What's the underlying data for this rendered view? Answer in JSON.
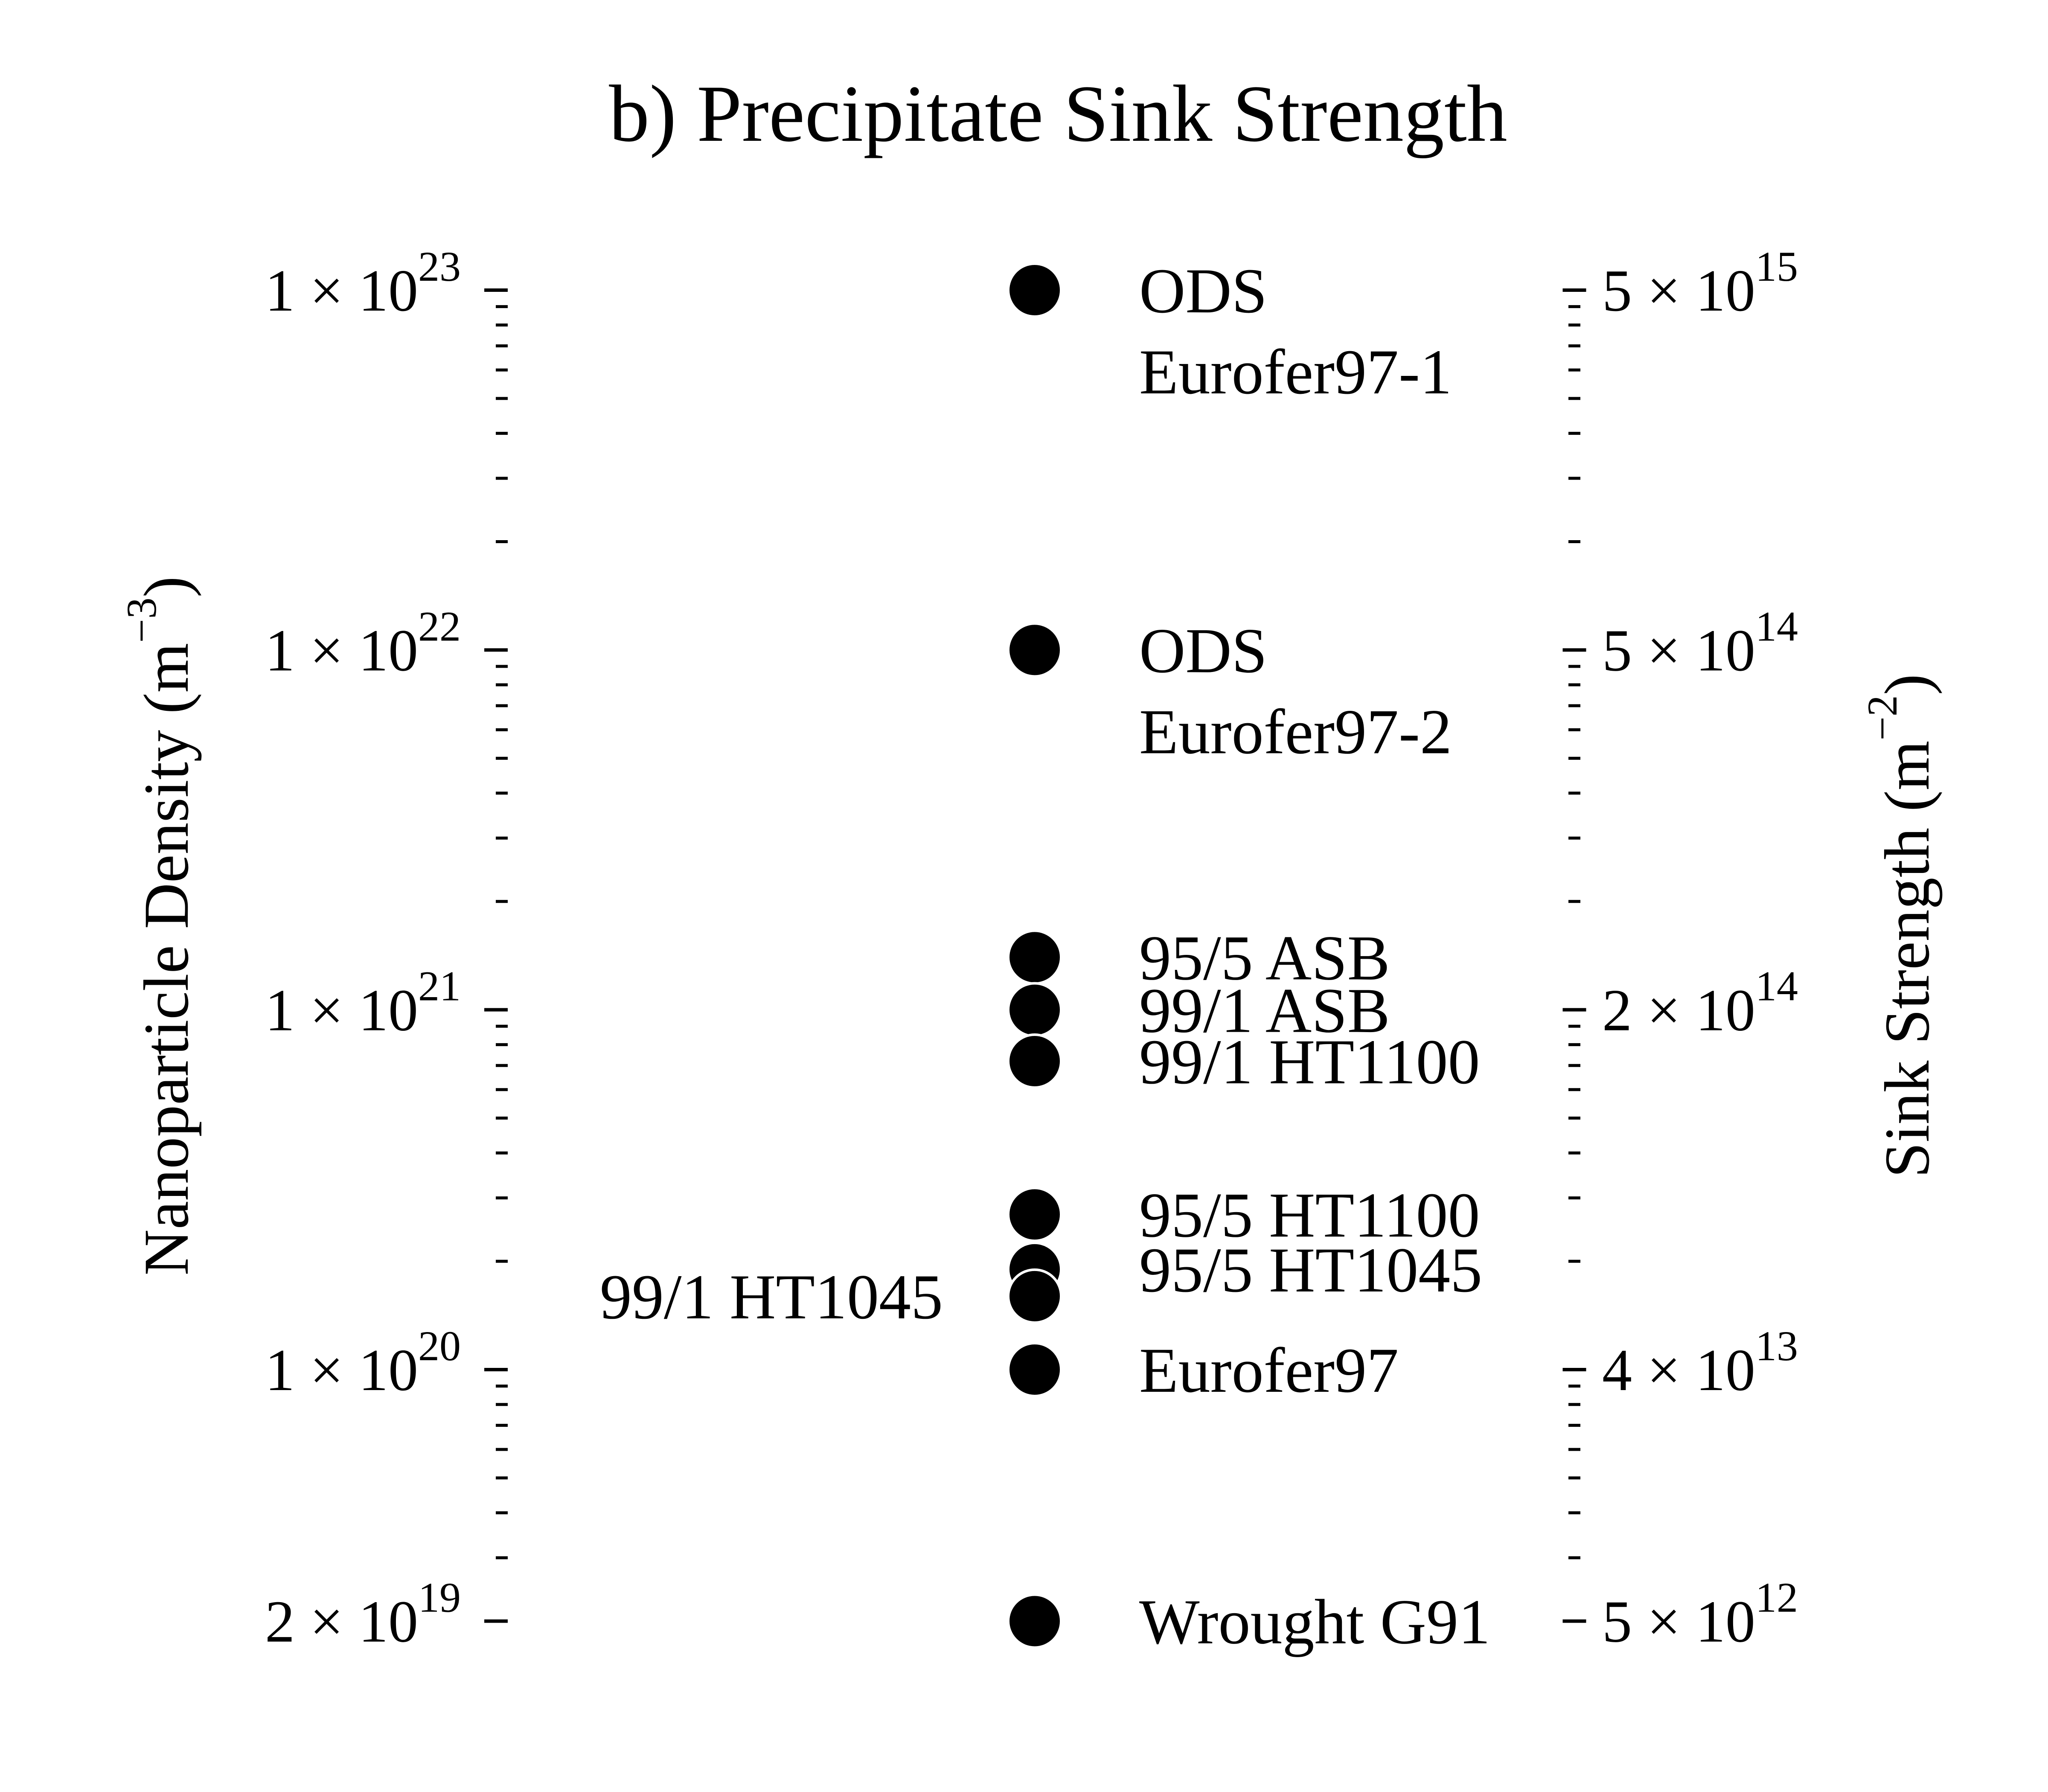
{
  "chart_data": {
    "type": "scatter",
    "title": "b) Precipitate Sink Strength",
    "left_axis": {
      "label_main": "Nanoparticle Density (m",
      "label_exp": "−3",
      "label_close": ")",
      "scale": "log",
      "range": [
        1.3e+19,
        2e+23
      ],
      "ticks": [
        {
          "value": 1e+23,
          "mantissa": "1",
          "exp": "23"
        },
        {
          "value": 1e+22,
          "mantissa": "1",
          "exp": "22"
        },
        {
          "value": 1e+21,
          "mantissa": "1",
          "exp": "21"
        },
        {
          "value": 1e+20,
          "mantissa": "1",
          "exp": "20"
        },
        {
          "value": 2e+19,
          "mantissa": "2",
          "exp": "19"
        }
      ]
    },
    "right_axis": {
      "label_main": "Sink Strength (m",
      "label_exp": "−2",
      "label_close": ")",
      "ticks": [
        {
          "mantissa": "5",
          "exp": "15",
          "at_left_value": 1e+23
        },
        {
          "mantissa": "5",
          "exp": "14",
          "at_left_value": 1e+22
        },
        {
          "mantissa": "2",
          "exp": "14",
          "at_left_value": 1e+21
        },
        {
          "mantissa": "4",
          "exp": "13",
          "at_left_value": 1e+20
        },
        {
          "mantissa": "5",
          "exp": "12",
          "at_left_value": 2e+19
        }
      ]
    },
    "times_symbol": "×",
    "base": "10",
    "points": [
      {
        "label_lines": [
          "ODS",
          "Eurofer97-1"
        ],
        "value": 1e+23,
        "label_side": "right"
      },
      {
        "label_lines": [
          "ODS",
          "Eurofer97-2"
        ],
        "value": 1e+22,
        "label_side": "right"
      },
      {
        "label_lines": [
          "95/5 ASB"
        ],
        "value": 1.4e+21,
        "label_side": "right"
      },
      {
        "label_lines": [
          "99/1 ASB"
        ],
        "value": 1e+21,
        "label_side": "right"
      },
      {
        "label_lines": [
          "99/1 HT1100"
        ],
        "value": 7.2e+20,
        "label_side": "right"
      },
      {
        "label_lines": [
          "95/5 HT1100"
        ],
        "value": 2.7e+20,
        "label_side": "right"
      },
      {
        "label_lines": [
          "95/5 HT1045"
        ],
        "value": 1.9e+20,
        "label_side": "right"
      },
      {
        "label_lines": [
          "99/1 HT1045"
        ],
        "value": 1.6e+20,
        "label_side": "left"
      },
      {
        "label_lines": [
          "Eurofer97"
        ],
        "value": 1e+20,
        "label_side": "right"
      },
      {
        "label_lines": [
          "Wrought G91"
        ],
        "value": 2e+19,
        "label_side": "right"
      }
    ]
  }
}
